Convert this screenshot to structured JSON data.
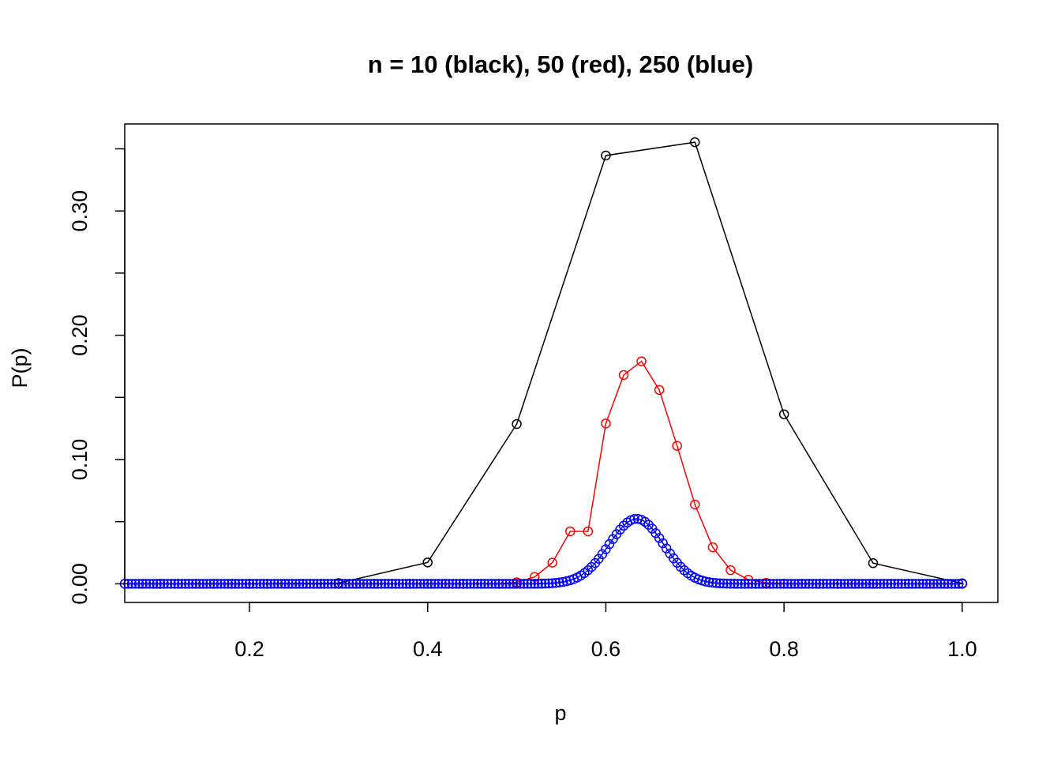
{
  "chart_data": {
    "type": "line",
    "title": "n = 10 (black), 50 (red), 250 (blue)",
    "xlabel": "p",
    "ylabel": "P(p)",
    "xlim": [
      0.06,
      1.04
    ],
    "ylim": [
      -0.015,
      0.37
    ],
    "x_ticks": [
      0.2,
      0.4,
      0.6,
      0.8,
      1.0
    ],
    "x_tick_labels": [
      "0.2",
      "0.4",
      "0.6",
      "0.8",
      "1.0"
    ],
    "y_ticks": [
      0.0,
      0.05,
      0.1,
      0.15,
      0.2,
      0.25,
      0.3,
      0.35
    ],
    "y_tick_labels": [
      "0.00",
      "",
      "0.10",
      "",
      "0.20",
      "",
      "0.30",
      ""
    ],
    "grid": false,
    "marker": "open-circle",
    "series": [
      {
        "color": "#000000",
        "n": 10,
        "x": [
          0.0,
          0.1,
          0.2,
          0.3,
          0.4,
          0.5,
          0.6,
          0.7,
          0.8,
          0.9,
          1.0
        ],
        "values": [
          0.0,
          0.0,
          0.0,
          0.0006,
          0.0172,
          0.1286,
          0.3446,
          0.3553,
          0.1364,
          0.0166,
          0.0004
        ]
      },
      {
        "color": "#ff0000",
        "n": 50,
        "x": [
          0.0,
          0.02,
          0.04,
          0.06,
          0.08,
          0.1,
          0.12,
          0.14,
          0.16,
          0.18,
          0.2,
          0.22,
          0.24,
          0.26,
          0.28,
          0.3,
          0.32,
          0.34,
          0.36,
          0.38,
          0.4,
          0.42,
          0.44,
          0.46,
          0.48,
          0.5,
          0.52,
          0.54,
          0.56,
          0.58,
          0.6,
          0.62,
          0.64,
          0.66,
          0.68,
          0.7,
          0.72,
          0.74,
          0.76,
          0.78,
          0.8,
          0.82,
          0.84,
          0.86,
          0.88,
          0.9,
          0.92,
          0.94,
          0.96,
          0.98,
          1.0
        ],
        "values": [
          0,
          0,
          0,
          0,
          0,
          0,
          0,
          0,
          0,
          0,
          0,
          0,
          0,
          0,
          0,
          0,
          0,
          0,
          0,
          0,
          0,
          0,
          0,
          0,
          0,
          0.0012,
          0.0055,
          0.017,
          0.0422,
          0.0422,
          0.129,
          0.168,
          0.179,
          0.156,
          0.111,
          0.0638,
          0.0294,
          0.011,
          0.0033,
          0.0008,
          0.0002,
          0,
          0,
          0,
          0,
          0,
          0,
          0,
          0,
          0,
          0
        ]
      },
      {
        "color": "#0000ff",
        "n": 250,
        "dist": "binomial",
        "p": 0.634,
        "x_from": 0,
        "x_to": 1,
        "x_step": 0.004
      }
    ]
  }
}
